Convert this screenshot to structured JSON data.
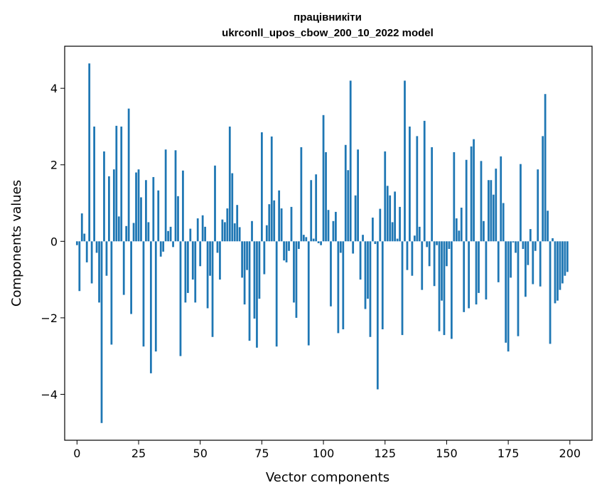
{
  "chart_data": {
    "type": "bar",
    "title_line1": "працівникіти",
    "title_line2": "ukrconll_upos_cbow_200_10_2022 model",
    "xlabel": "Vector components",
    "ylabel": "Components values",
    "xlim": [
      -5,
      209
    ],
    "ylim": [
      -5.2,
      5.1
    ],
    "xticks": [
      0,
      25,
      50,
      75,
      100,
      125,
      150,
      175,
      200
    ],
    "xtick_labels": [
      "0",
      "25",
      "50",
      "75",
      "100",
      "125",
      "150",
      "175",
      "200"
    ],
    "yticks": [
      -4,
      -2,
      0,
      2,
      4
    ],
    "ytick_labels": [
      "−4",
      "−2",
      "0",
      "2",
      "4"
    ],
    "bar_color": "#1f77b4",
    "grid": false,
    "x": [
      0,
      1,
      2,
      3,
      4,
      5,
      6,
      7,
      8,
      9,
      10,
      11,
      12,
      13,
      14,
      15,
      16,
      17,
      18,
      19,
      20,
      21,
      22,
      23,
      24,
      25,
      26,
      27,
      28,
      29,
      30,
      31,
      32,
      33,
      34,
      35,
      36,
      37,
      38,
      39,
      40,
      41,
      42,
      43,
      44,
      45,
      46,
      47,
      48,
      49,
      50,
      51,
      52,
      53,
      54,
      55,
      56,
      57,
      58,
      59,
      60,
      61,
      62,
      63,
      64,
      65,
      66,
      67,
      68,
      69,
      70,
      71,
      72,
      73,
      74,
      75,
      76,
      77,
      78,
      79,
      80,
      81,
      82,
      83,
      84,
      85,
      86,
      87,
      88,
      89,
      90,
      91,
      92,
      93,
      94,
      95,
      96,
      97,
      98,
      99,
      100,
      101,
      102,
      103,
      104,
      105,
      106,
      107,
      108,
      109,
      110,
      111,
      112,
      113,
      114,
      115,
      116,
      117,
      118,
      119,
      120,
      121,
      122,
      123,
      124,
      125,
      126,
      127,
      128,
      129,
      130,
      131,
      132,
      133,
      134,
      135,
      136,
      137,
      138,
      139,
      140,
      141,
      142,
      143,
      144,
      145,
      146,
      147,
      148,
      149,
      150,
      151,
      152,
      153,
      154,
      155,
      156,
      157,
      158,
      159,
      160,
      161,
      162,
      163,
      164,
      165,
      166,
      167,
      168,
      169,
      170,
      171,
      172,
      173,
      174,
      175,
      176,
      177,
      178,
      179,
      180,
      181,
      182,
      183,
      184,
      185,
      186,
      187,
      188,
      189,
      190,
      191,
      192,
      193,
      194,
      195,
      196,
      197,
      198,
      199
    ],
    "values": [
      -0.1,
      -1.3,
      0.73,
      0.2,
      -0.55,
      4.65,
      -1.1,
      3.0,
      -0.3,
      -1.6,
      -4.75,
      2.35,
      -0.9,
      1.7,
      -2.7,
      1.88,
      3.02,
      0.65,
      3.0,
      -1.4,
      0.4,
      3.47,
      -1.9,
      0.48,
      1.8,
      1.88,
      1.15,
      -2.75,
      1.6,
      0.5,
      -3.45,
      1.68,
      -2.88,
      1.33,
      -0.4,
      -0.27,
      2.4,
      0.27,
      0.38,
      -0.15,
      2.38,
      1.18,
      -3.0,
      1.85,
      -1.6,
      -1.35,
      0.33,
      -1.0,
      -1.6,
      0.6,
      -0.65,
      0.68,
      0.38,
      -1.75,
      -0.9,
      -2.5,
      1.98,
      -0.3,
      -1.0,
      0.57,
      0.5,
      0.86,
      3.0,
      1.78,
      0.47,
      0.95,
      0.37,
      -0.95,
      -1.65,
      -0.75,
      -2.6,
      0.53,
      -2.02,
      -2.78,
      -1.5,
      2.85,
      -0.86,
      0.42,
      0.97,
      2.74,
      1.07,
      -2.75,
      1.33,
      0.86,
      -0.5,
      -0.55,
      -0.25,
      0.9,
      -1.6,
      -2.0,
      -0.2,
      2.46,
      0.17,
      0.11,
      -2.72,
      1.6,
      0.07,
      1.75,
      -0.05,
      -0.1,
      3.3,
      2.33,
      0.82,
      -1.7,
      0.53,
      0.77,
      -2.4,
      -0.3,
      -2.3,
      2.52,
      1.86,
      4.2,
      -0.32,
      1.2,
      2.4,
      -1.0,
      0.17,
      -1.77,
      -1.5,
      -2.5,
      0.62,
      -0.07,
      -3.87,
      0.85,
      -2.3,
      2.35,
      1.45,
      1.2,
      0.5,
      1.3,
      0.07,
      0.9,
      -2.45,
      4.2,
      -0.75,
      3.0,
      -0.9,
      0.15,
      2.75,
      0.38,
      -1.27,
      3.15,
      -0.15,
      -0.65,
      2.46,
      -1.17,
      -0.1,
      -2.35,
      -1.55,
      -2.45,
      -0.65,
      -0.2,
      -2.55,
      2.33,
      0.6,
      0.28,
      0.88,
      -1.85,
      2.13,
      -1.75,
      2.48,
      2.67,
      -1.65,
      -1.35,
      2.1,
      0.53,
      -1.52,
      1.6,
      1.6,
      1.22,
      1.9,
      -1.07,
      2.22,
      1.0,
      -2.65,
      -2.88,
      -0.95,
      -0.03,
      -0.3,
      -2.48,
      2.02,
      -0.2,
      -1.45,
      -0.62,
      0.32,
      -1.12,
      -0.25,
      1.88,
      -1.18,
      2.75,
      3.85,
      0.8,
      -2.68,
      0.08,
      -1.62,
      -1.55,
      -1.27,
      -1.1,
      -0.9,
      -0.8
    ]
  }
}
